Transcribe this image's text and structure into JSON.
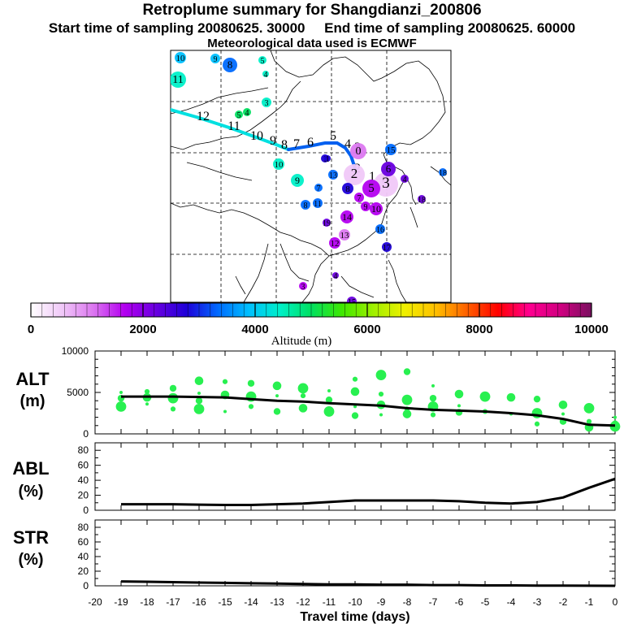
{
  "header": {
    "title": "Retroplume summary for Shangdianzi_200806",
    "start_label": "Start time of sampling 20080625. 30000",
    "end_label": "End time of sampling 20080625. 60000",
    "met_label": "Meteorological data used is ECMWF"
  },
  "colorbar": {
    "title": "Altitude (m)",
    "min": 0,
    "max": 10000,
    "tick_labels": [
      "0",
      "2000",
      "4000",
      "6000",
      "8000",
      "10000"
    ],
    "tick_values": [
      0,
      2000,
      4000,
      6000,
      8000,
      10000
    ],
    "stops": [
      "#ffffff",
      "#f0c8f8",
      "#dc78f0",
      "#b400f0",
      "#6a00e0",
      "#1e00d8",
      "#006aff",
      "#00c0ff",
      "#00f0c8",
      "#00e060",
      "#40e800",
      "#a0f000",
      "#f0f000",
      "#ffc000",
      "#ff6000",
      "#ff0000",
      "#ff0090",
      "#d00080",
      "#7a1060"
    ]
  },
  "map": {
    "day_labels": [
      {
        "label": "10",
        "alt": 4000
      },
      {
        "label": "9",
        "alt": 3800
      },
      {
        "label": "8",
        "alt": 3500
      },
      {
        "label": "5",
        "alt": 4300
      },
      {
        "label": "4",
        "alt": 4500
      },
      {
        "label": "11",
        "alt": 4600
      },
      {
        "label": "3",
        "alt": 4300
      },
      {
        "label": "5",
        "alt": 4800
      },
      {
        "label": "4",
        "alt": 4800
      },
      {
        "label": "10",
        "alt": 4400
      },
      {
        "label": "9",
        "alt": 4200
      },
      {
        "label": "13",
        "alt": 3400
      },
      {
        "label": "7",
        "alt": 3300
      },
      {
        "label": "8",
        "alt": 3200
      },
      {
        "label": "11",
        "alt": 3200
      },
      {
        "label": "15",
        "alt": 3600
      },
      {
        "label": "18",
        "alt": 3300
      },
      {
        "label": "0",
        "alt": 900
      },
      {
        "label": "2",
        "alt": 800
      },
      {
        "label": "3",
        "alt": 800
      },
      {
        "label": "4",
        "alt": 2200
      },
      {
        "label": "6",
        "alt": 2300
      },
      {
        "label": "5",
        "alt": 1600
      },
      {
        "label": "8",
        "alt": 2600
      },
      {
        "label": "7",
        "alt": 1800
      },
      {
        "label": "9",
        "alt": 1500
      },
      {
        "label": "10",
        "alt": 1700
      },
      {
        "label": "12",
        "alt": 1400
      },
      {
        "label": "13",
        "alt": 1200
      },
      {
        "label": "16",
        "alt": 3400
      },
      {
        "label": "17",
        "alt": 3000
      },
      {
        "label": "14",
        "alt": 1900
      },
      {
        "label": "19",
        "alt": 2200
      },
      {
        "label": "1",
        "alt": 3000
      },
      {
        "label": "1",
        "alt": 2500
      },
      {
        "label": "15",
        "alt": 2400
      },
      {
        "label": "18",
        "alt": 2200
      },
      {
        "label": "4",
        "alt": 2300
      },
      {
        "label": "3",
        "alt": 1700
      }
    ],
    "trajectory_labels": [
      "12",
      "11",
      "10",
      "9",
      "8",
      "7",
      "6",
      "5",
      "4",
      "3",
      "2",
      "1",
      "0"
    ]
  },
  "chart_data": [
    {
      "name": "ALT",
      "type": "scatter",
      "ylabel": "ALT",
      "yunits": "(m)",
      "ylim": [
        0,
        10000
      ],
      "yticks": [
        "0",
        "5000",
        "10000"
      ],
      "yticks_minor": [
        1000,
        2000,
        3000,
        4000,
        6000,
        7000,
        8000,
        9000
      ],
      "line": {
        "name": "mean altitude",
        "x": [
          -19,
          -18,
          -17,
          -16,
          -15,
          -14,
          -13,
          -12,
          -11,
          -10,
          -9,
          -8,
          -7,
          -6,
          -5,
          -4,
          -3,
          -2,
          -1,
          0
        ],
        "y": [
          4500,
          4500,
          4500,
          4450,
          4400,
          4200,
          4000,
          3900,
          3700,
          3550,
          3400,
          3100,
          2900,
          2800,
          2700,
          2500,
          2250,
          1800,
          1100,
          1000
        ]
      },
      "points": [
        {
          "x": -19,
          "y": 5000
        },
        {
          "x": -19,
          "y": 4300
        },
        {
          "x": -19,
          "y": 3300
        },
        {
          "x": -18,
          "y": 5100
        },
        {
          "x": -18,
          "y": 4400
        },
        {
          "x": -18,
          "y": 3600
        },
        {
          "x": -17,
          "y": 5500
        },
        {
          "x": -17,
          "y": 4300
        },
        {
          "x": -17,
          "y": 3000
        },
        {
          "x": -16,
          "y": 6400
        },
        {
          "x": -16,
          "y": 4900
        },
        {
          "x": -16,
          "y": 4000
        },
        {
          "x": -16,
          "y": 3000
        },
        {
          "x": -15,
          "y": 6300
        },
        {
          "x": -15,
          "y": 4700
        },
        {
          "x": -15,
          "y": 2700
        },
        {
          "x": -14,
          "y": 6100
        },
        {
          "x": -14,
          "y": 4500
        },
        {
          "x": -14,
          "y": 3300
        },
        {
          "x": -13,
          "y": 5800
        },
        {
          "x": -13,
          "y": 4600
        },
        {
          "x": -13,
          "y": 2700
        },
        {
          "x": -12,
          "y": 5500
        },
        {
          "x": -12,
          "y": 4600
        },
        {
          "x": -12,
          "y": 3100
        },
        {
          "x": -11,
          "y": 5200
        },
        {
          "x": -11,
          "y": 4100
        },
        {
          "x": -11,
          "y": 2700
        },
        {
          "x": -10,
          "y": 6600
        },
        {
          "x": -10,
          "y": 5100
        },
        {
          "x": -10,
          "y": 3300
        },
        {
          "x": -10,
          "y": 2200
        },
        {
          "x": -9,
          "y": 7100
        },
        {
          "x": -9,
          "y": 4800
        },
        {
          "x": -9,
          "y": 3500
        },
        {
          "x": -9,
          "y": 2300
        },
        {
          "x": -8,
          "y": 7500
        },
        {
          "x": -8,
          "y": 4100
        },
        {
          "x": -8,
          "y": 3000
        },
        {
          "x": -8,
          "y": 2400
        },
        {
          "x": -7,
          "y": 5800
        },
        {
          "x": -7,
          "y": 4300
        },
        {
          "x": -7,
          "y": 3300
        },
        {
          "x": -7,
          "y": 2300
        },
        {
          "x": -6,
          "y": 4800
        },
        {
          "x": -6,
          "y": 3400
        },
        {
          "x": -6,
          "y": 2600
        },
        {
          "x": -5,
          "y": 4500
        },
        {
          "x": -5,
          "y": 2700
        },
        {
          "x": -4,
          "y": 4400
        },
        {
          "x": -4,
          "y": 2400
        },
        {
          "x": -3,
          "y": 4200
        },
        {
          "x": -3,
          "y": 2500
        },
        {
          "x": -3,
          "y": 1200
        },
        {
          "x": -2,
          "y": 3500
        },
        {
          "x": -2,
          "y": 2400
        },
        {
          "x": -2,
          "y": 1500
        },
        {
          "x": -1,
          "y": 3100
        },
        {
          "x": -1,
          "y": 1500
        },
        {
          "x": -1,
          "y": 800
        },
        {
          "x": 0,
          "y": 2000
        },
        {
          "x": 0,
          "y": 1200
        },
        {
          "x": 0,
          "y": 900
        }
      ]
    },
    {
      "name": "ABL",
      "type": "line",
      "ylabel": "ABL",
      "yunits": "(%)",
      "ylim": [
        0,
        90
      ],
      "yticks": [
        "0",
        "20",
        "40",
        "60",
        "80"
      ],
      "x": [
        -19,
        -18,
        -17,
        -16,
        -15,
        -14,
        -13,
        -12,
        -11,
        -10,
        -9,
        -8,
        -7,
        -6,
        -5,
        -4,
        -3,
        -2,
        -1,
        0
      ],
      "y": [
        8,
        8,
        8,
        7.5,
        7,
        7,
        8,
        9,
        11,
        13,
        13,
        13,
        13,
        12,
        10,
        9,
        11,
        17,
        30,
        42
      ]
    },
    {
      "name": "STR",
      "type": "line",
      "ylabel": "STR",
      "yunits": "(%)",
      "ylim": [
        0,
        90
      ],
      "yticks": [
        "0",
        "20",
        "40",
        "60",
        "80"
      ],
      "x": [
        -19,
        -18,
        -17,
        -16,
        -15,
        -14,
        -13,
        -12,
        -11,
        -10,
        -9,
        -8,
        -7,
        -6,
        -5,
        -4,
        -3,
        -2,
        -1,
        0
      ],
      "y": [
        6,
        5.5,
        5,
        4.5,
        4,
        3.5,
        3,
        2.5,
        2,
        2,
        1.5,
        1.5,
        1,
        1,
        0.5,
        0.5,
        0.3,
        0.2,
        0.1,
        0
      ]
    }
  ],
  "xaxis": {
    "label": "Travel time (days)",
    "tick_labels": [
      "-20",
      "-19",
      "-18",
      "-17",
      "-16",
      "-15",
      "-14",
      "-13",
      "-12",
      "-11",
      "-10",
      "-9",
      "-8",
      "-7",
      "-6",
      "-5",
      "-4",
      "-3",
      "-2",
      "-1",
      "0"
    ],
    "tick_values": [
      -20,
      -19,
      -18,
      -17,
      -16,
      -15,
      -14,
      -13,
      -12,
      -11,
      -10,
      -9,
      -8,
      -7,
      -6,
      -5,
      -4,
      -3,
      -2,
      -1,
      0
    ]
  },
  "colors": {
    "points": "#28f050",
    "line": "#000000",
    "trajectory_light": "#00e0e0",
    "trajectory_dark": "#0060f0"
  }
}
